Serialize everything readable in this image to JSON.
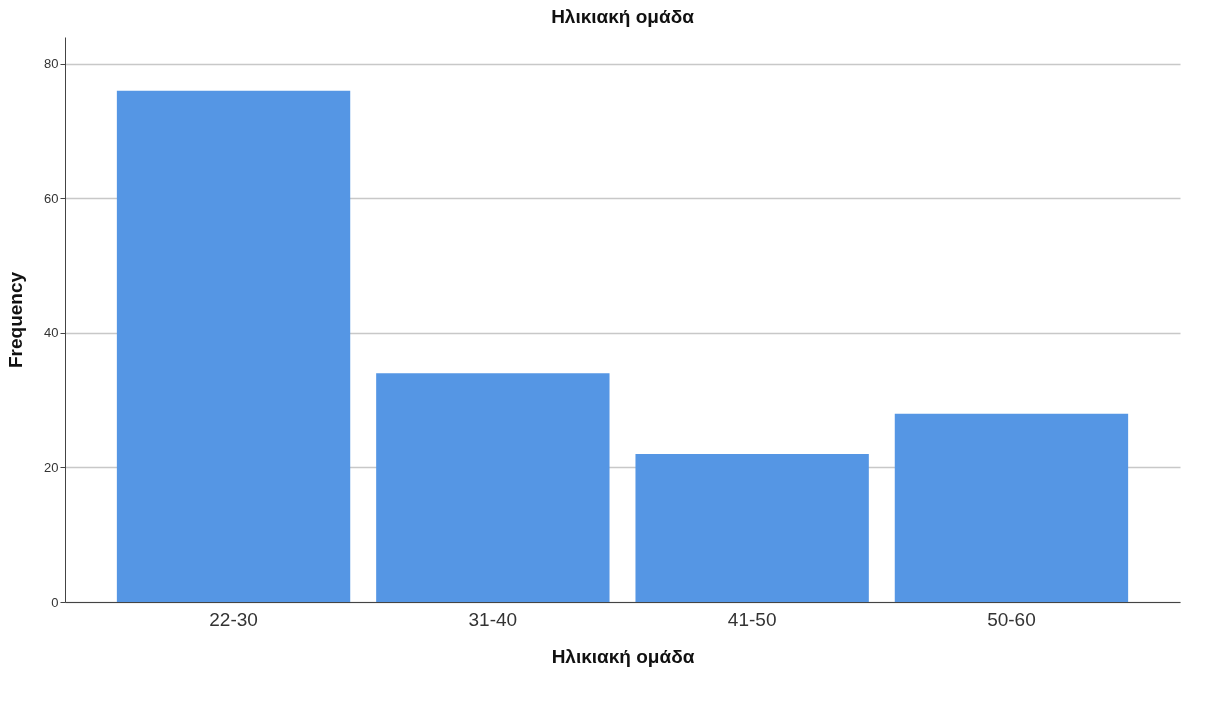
{
  "chart_data": {
    "type": "bar",
    "title": "Ηλικιακή ομάδα",
    "xlabel": "Ηλικιακή ομάδα",
    "ylabel": "Frequency",
    "categories": [
      "22-30",
      "31-40",
      "41-50",
      "50-60"
    ],
    "values": [
      76,
      34,
      22,
      28
    ],
    "color": "#5596e4",
    "ylim": [
      0,
      84
    ],
    "yticks": [
      0,
      20,
      40,
      60,
      80
    ],
    "grid": "y"
  }
}
